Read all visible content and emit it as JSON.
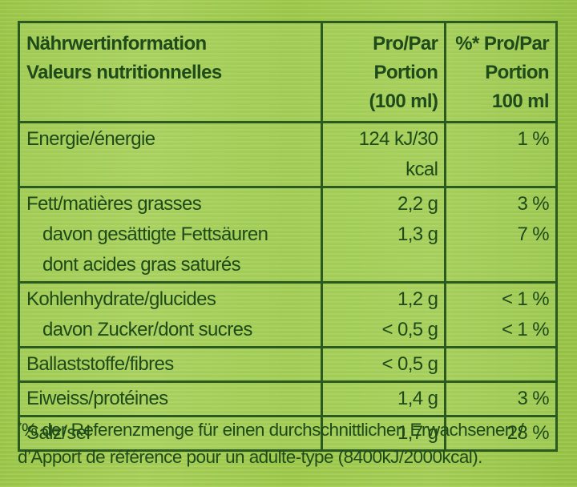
{
  "header": {
    "col1_line1": "Nährwertinformation",
    "col1_line2": "Valeurs nutritionnelles",
    "col2_line1": "Pro/Par Portion",
    "col2_line2": "(100 ml)",
    "col3_line1": "%* Pro/Par",
    "col3_line2": "Portion 100 ml"
  },
  "rows": [
    {
      "label": "Energie/énergie",
      "portion": "124 kJ/30 kcal",
      "percent": "1 %"
    },
    {
      "label": "Fett/matières grasses",
      "portion": "2,2 g",
      "percent": "3 %"
    },
    {
      "label": "davon gesättigte Fettsäuren",
      "label2": "dont acides gras saturés",
      "portion": "1,3 g",
      "percent": "7 %"
    },
    {
      "label": "Kohlenhydrate/glucides",
      "portion": "1,2 g",
      "percent": "< 1 %"
    },
    {
      "label": "davon Zucker/dont sucres",
      "portion": "< 0,5 g",
      "percent": "< 1 %"
    },
    {
      "label": "Ballaststoffe/fibres",
      "portion": "< 0,5 g",
      "percent": ""
    },
    {
      "label": "Eiweiss/protéines",
      "portion": "1,4 g",
      "percent": "3 %"
    },
    {
      "label": "Salz/sel",
      "portion": "1,7 g",
      "percent": "28 %"
    }
  ],
  "footnote": {
    "marker": "*",
    "line1": "% der Referenzmenge für einen durchschnittlichen Erwachsenen /",
    "line2": "d’Apport de référence pour un adulte-type (8400kJ/2000kcal)."
  }
}
